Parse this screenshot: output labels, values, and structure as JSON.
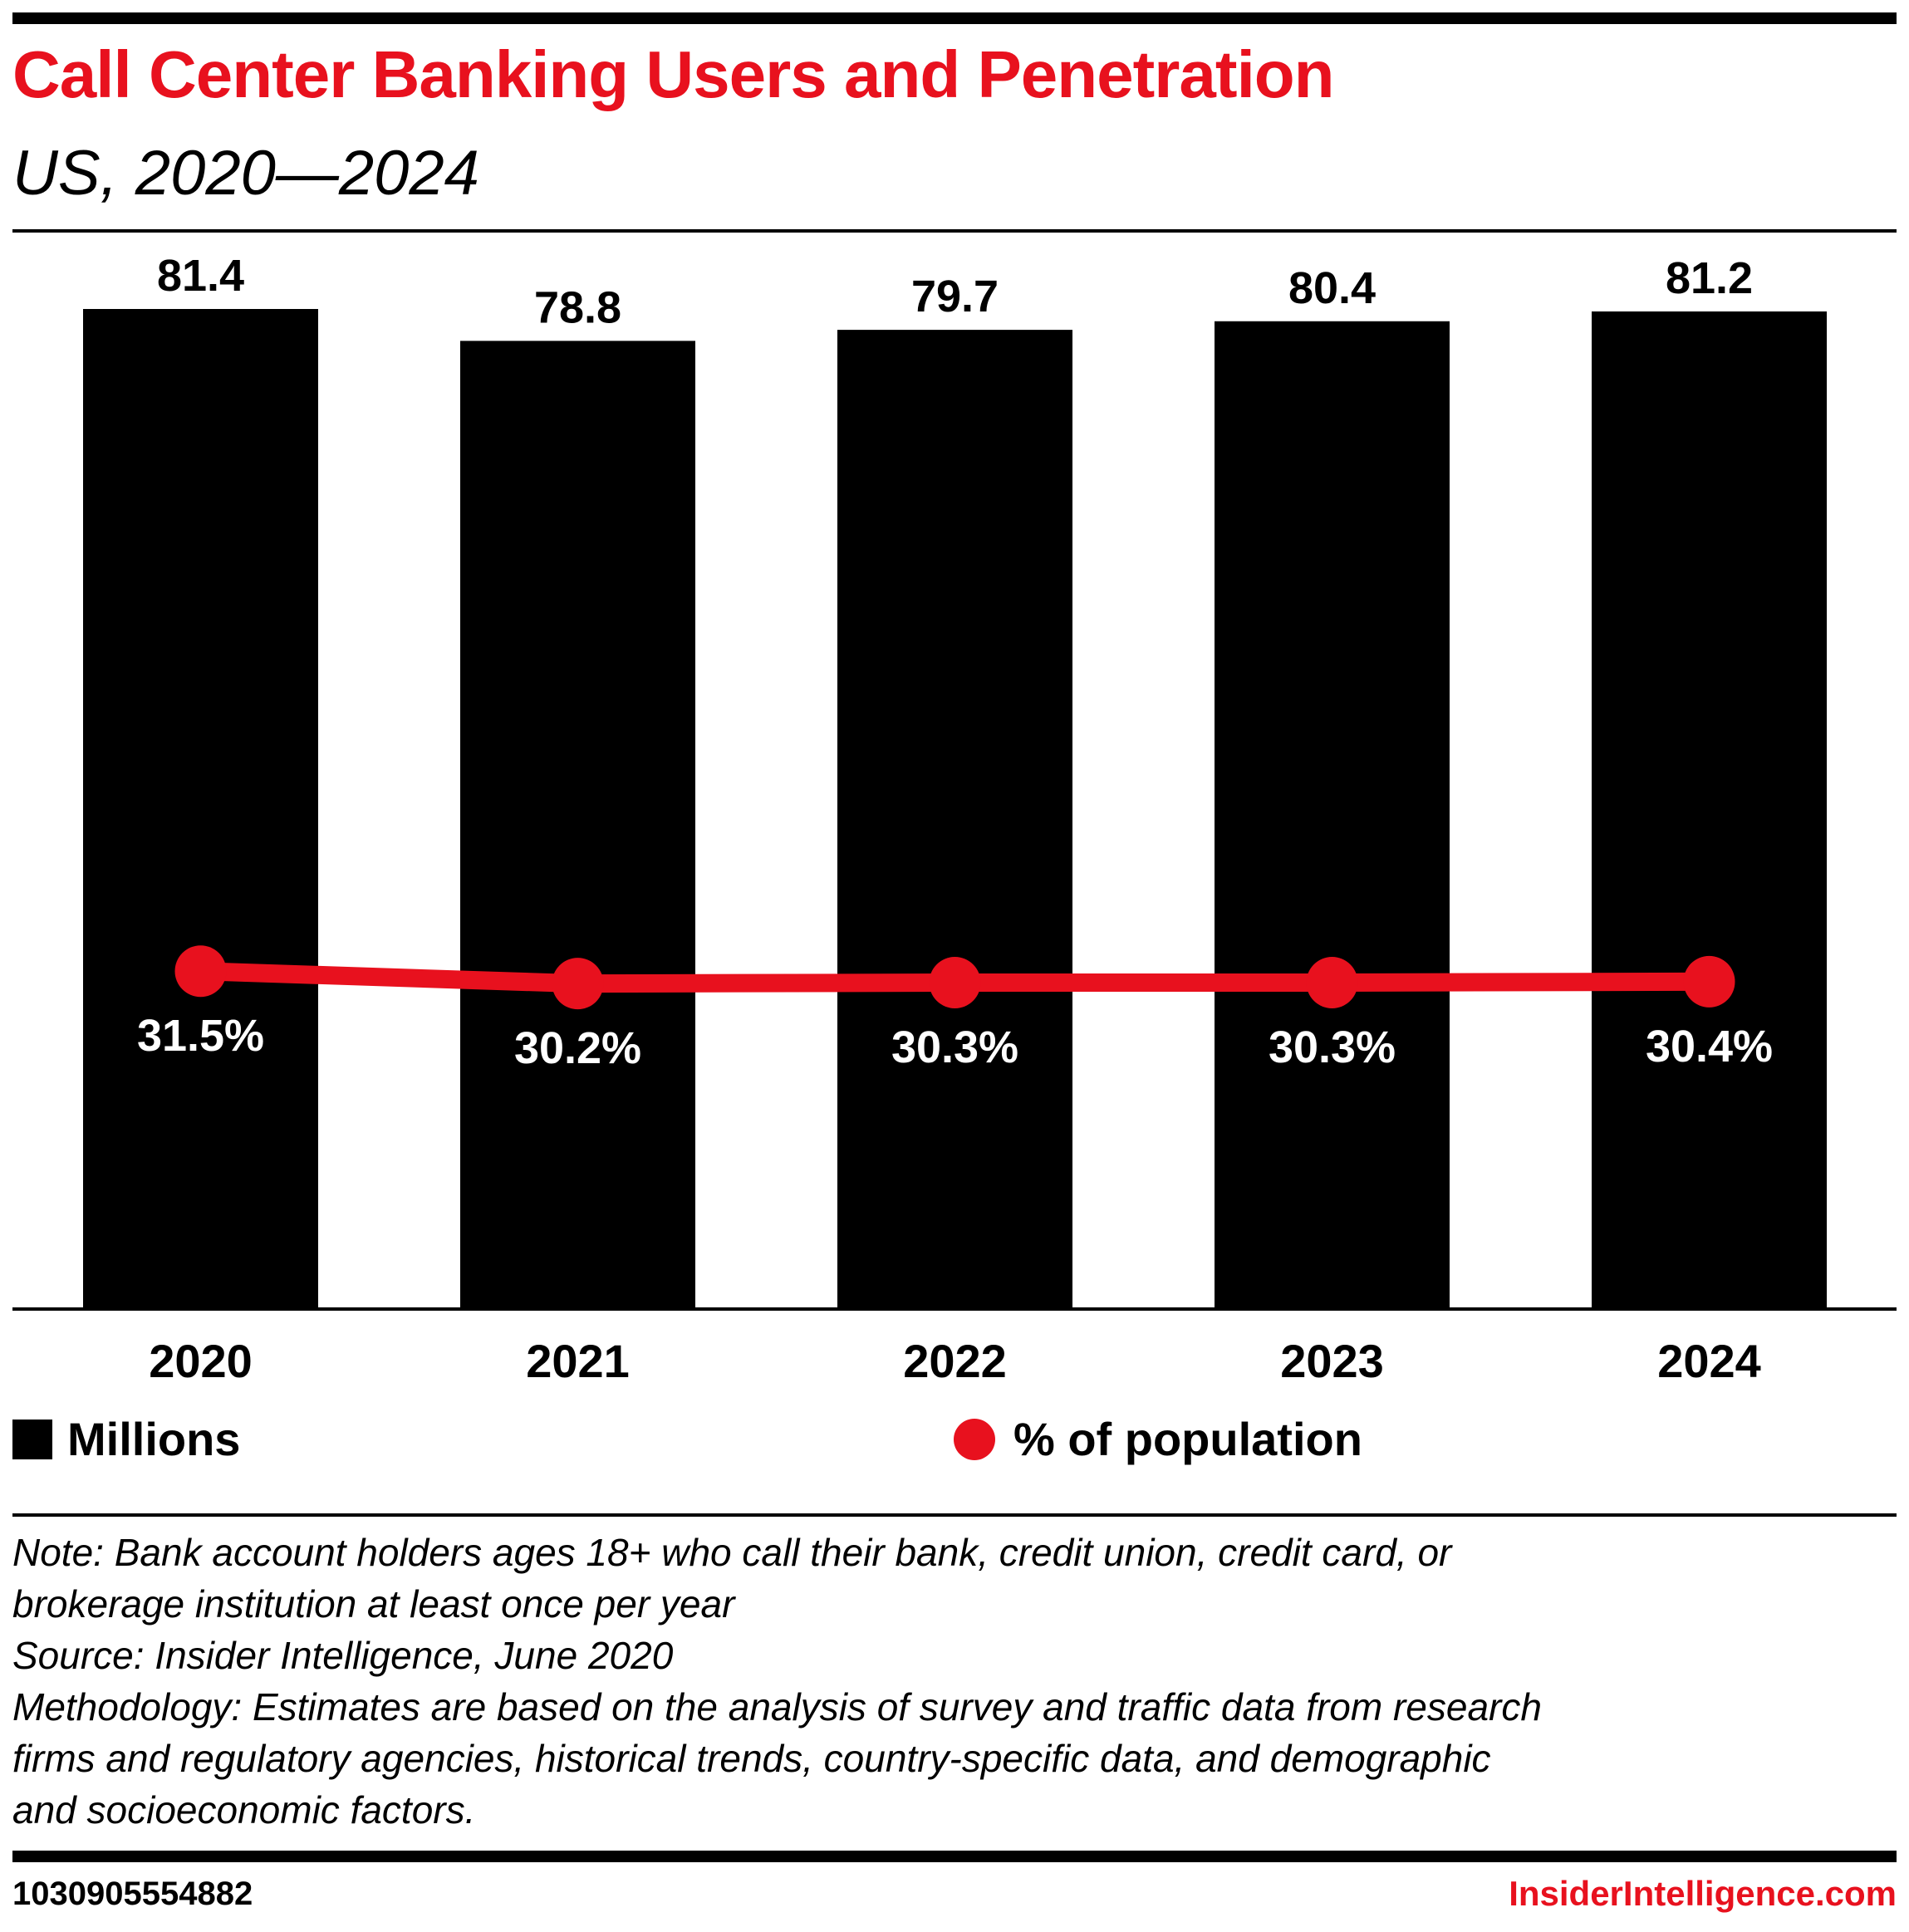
{
  "header": {
    "title": "Call Center Banking Users and Penetration",
    "subtitle": "US, 2020—2024"
  },
  "colors": {
    "accent": "#e8111e",
    "bars": "#000000",
    "pct_label": "#ffffff"
  },
  "chart_data": {
    "type": "bar",
    "title": "Call Center Banking Users and Penetration",
    "subtitle": "US, 2020—2024",
    "categories": [
      "2020",
      "2021",
      "2022",
      "2023",
      "2024"
    ],
    "series": [
      {
        "name": "Millions",
        "type": "bar",
        "values": [
          81.4,
          78.8,
          79.7,
          80.4,
          81.2
        ],
        "labels": [
          "81.4",
          "78.8",
          "79.7",
          "80.4",
          "81.2"
        ]
      },
      {
        "name": "% of population",
        "type": "line",
        "values": [
          31.5,
          30.2,
          30.3,
          30.3,
          30.4
        ],
        "labels": [
          "31.5%",
          "30.2%",
          "30.3%",
          "30.3%",
          "30.4%"
        ]
      }
    ],
    "xlabel": "",
    "ylabel": "",
    "ylim": [
      0,
      81.4
    ],
    "grid": false,
    "legend": "bottom"
  },
  "legend": {
    "millions": "Millions",
    "pct": "% of population"
  },
  "notes": {
    "lines": [
      "Note: Bank account holders ages 18+ who call their bank, credit union, credit card, or",
      "brokerage institution at least once per year",
      "Source: Insider Intelligence, June 2020",
      "Methodology: Estimates are based on the analysis of survey and traffic data from research",
      "firms and regulatory agencies, historical trends, country-specific data, and demographic",
      "and socioeconomic factors."
    ]
  },
  "footer": {
    "id": "1030905554882",
    "brand": "InsiderIntelligence.com"
  }
}
